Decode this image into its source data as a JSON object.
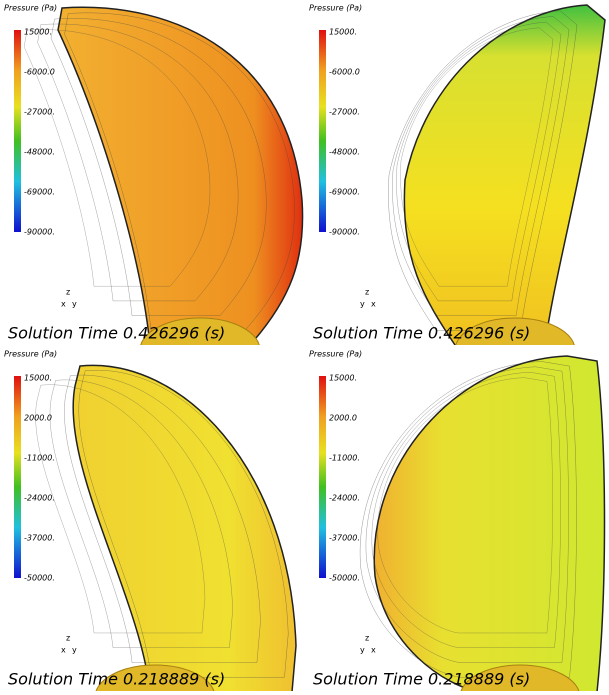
{
  "panels": [
    {
      "legend_title": "Pressure (Pa)",
      "legend_ticks": [
        "15000.",
        "-6000.0",
        "-27000.",
        "-48000.",
        "-69000.",
        "-90000."
      ],
      "triad": [
        "z",
        "x",
        "y"
      ],
      "solution_time": "Solution Time 0.426296 (s)"
    },
    {
      "legend_title": "Pressure (Pa)",
      "legend_ticks": [
        "15000.",
        "-6000.0",
        "-27000.",
        "-48000.",
        "-69000.",
        "-90000."
      ],
      "triad": [
        "z",
        "y",
        "x"
      ],
      "solution_time": "Solution Time 0.426296 (s)"
    },
    {
      "legend_title": "Pressure (Pa)",
      "legend_ticks": [
        "15000.",
        "2000.0",
        "-11000.",
        "-24000.",
        "-37000.",
        "-50000."
      ],
      "triad": [
        "z",
        "x",
        "y"
      ],
      "solution_time": "Solution Time 0.218889 (s)"
    },
    {
      "legend_title": "Pressure (Pa)",
      "legend_ticks": [
        "15000.",
        "2000.0",
        "-11000.",
        "-24000.",
        "-37000.",
        "-50000."
      ],
      "triad": [
        "z",
        "y",
        "x"
      ],
      "solution_time": "Solution Time 0.218889 (s)"
    }
  ]
}
